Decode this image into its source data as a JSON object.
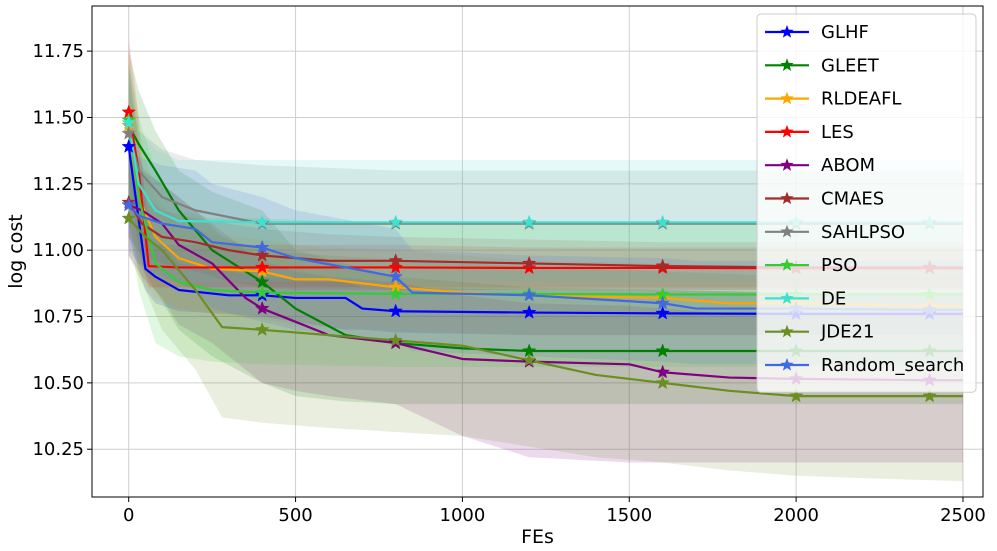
{
  "chart_data": {
    "type": "line",
    "xlabel": "FEs",
    "ylabel": "log cost",
    "xlim": [
      -110,
      2560
    ],
    "ylim": [
      10.07,
      11.92
    ],
    "xticks": [
      0,
      500,
      1000,
      1500,
      2000,
      2500
    ],
    "xtick_labels": [
      "0",
      "500",
      "1000",
      "1500",
      "2000",
      "2500"
    ],
    "yticks": [
      10.25,
      10.5,
      10.75,
      11.0,
      11.25,
      11.5,
      11.75
    ],
    "ytick_labels": [
      "10.25",
      "10.50",
      "10.75",
      "11.00",
      "11.25",
      "11.50",
      "11.75"
    ],
    "grid": true,
    "legend_position": "top-right",
    "marker_every": 400,
    "series": [
      {
        "name": "GLHF",
        "color": "#0000ff",
        "x": [
          0,
          50,
          80,
          150,
          300,
          400,
          500,
          650,
          700,
          800,
          1200,
          1600,
          2000,
          2400,
          2500
        ],
        "y": [
          11.39,
          10.93,
          10.9,
          10.85,
          10.83,
          10.83,
          10.82,
          10.82,
          10.78,
          10.77,
          10.765,
          10.762,
          10.76,
          10.76,
          10.76
        ],
        "band_low": [
          11.05,
          10.85,
          10.8,
          10.77,
          10.76,
          10.75,
          10.73,
          10.7,
          10.7,
          10.69,
          10.68,
          10.68,
          10.68,
          10.68,
          10.68
        ],
        "band_high": [
          11.7,
          11.2,
          11.05,
          10.95,
          10.92,
          10.9,
          10.89,
          10.88,
          10.86,
          10.86,
          10.85,
          10.85,
          10.84,
          10.84,
          10.84
        ]
      },
      {
        "name": "GLEET",
        "color": "#008000",
        "x": [
          0,
          30,
          80,
          150,
          250,
          400,
          500,
          650,
          800,
          1000,
          1200,
          1600,
          2000,
          2400,
          2500
        ],
        "y": [
          11.47,
          11.4,
          11.3,
          11.15,
          11.0,
          10.88,
          10.78,
          10.68,
          10.65,
          10.63,
          10.62,
          10.62,
          10.62,
          10.62,
          10.62
        ],
        "band_low": [
          11.1,
          10.95,
          10.85,
          10.7,
          10.6,
          10.5,
          10.45,
          10.43,
          10.42,
          10.42,
          10.42,
          10.42,
          10.42,
          10.42,
          10.42
        ],
        "band_high": [
          11.75,
          11.6,
          11.45,
          11.3,
          11.22,
          11.15,
          11.0,
          10.95,
          10.9,
          10.88,
          10.86,
          10.85,
          10.84,
          10.84,
          10.84
        ]
      },
      {
        "name": "RLDEAFL",
        "color": "#ffa500",
        "x": [
          0,
          30,
          80,
          150,
          250,
          400,
          500,
          600,
          800,
          1000,
          1200,
          1600,
          1800,
          2000,
          2400,
          2500
        ],
        "y": [
          11.47,
          11.2,
          11.05,
          10.97,
          10.93,
          10.92,
          10.89,
          10.89,
          10.86,
          10.84,
          10.83,
          10.82,
          10.8,
          10.8,
          10.79,
          10.79
        ],
        "band_low": [
          11.15,
          10.9,
          10.82,
          10.78,
          10.76,
          10.74,
          10.72,
          10.71,
          10.7,
          10.69,
          10.68,
          10.68,
          10.68,
          10.68,
          10.68,
          10.68
        ],
        "band_high": [
          11.75,
          11.45,
          11.2,
          11.1,
          11.06,
          11.04,
          11.02,
          11.01,
          11.0,
          10.98,
          10.96,
          10.95,
          10.94,
          10.94,
          10.94,
          10.94
        ]
      },
      {
        "name": "LES",
        "color": "#ff0000",
        "x": [
          0,
          30,
          60,
          150,
          400,
          800,
          1200,
          1600,
          2000,
          2400,
          2500
        ],
        "y": [
          11.52,
          11.3,
          10.94,
          10.935,
          10.935,
          10.935,
          10.933,
          10.933,
          10.932,
          10.932,
          10.932
        ],
        "band_low": [
          11.3,
          11.0,
          10.86,
          10.86,
          10.86,
          10.86,
          10.86,
          10.86,
          10.86,
          10.86,
          10.86
        ],
        "band_high": [
          11.8,
          11.5,
          11.02,
          11.02,
          11.02,
          11.02,
          11.01,
          11.01,
          11.01,
          11.01,
          11.01
        ]
      },
      {
        "name": "ABOM",
        "color": "#800080",
        "x": [
          0,
          40,
          100,
          150,
          250,
          350,
          400,
          500,
          600,
          800,
          1000,
          1200,
          1500,
          1600,
          1800,
          2000,
          2400,
          2500
        ],
        "y": [
          11.17,
          11.15,
          11.1,
          11.02,
          10.95,
          10.82,
          10.78,
          10.73,
          10.68,
          10.65,
          10.59,
          10.58,
          10.57,
          10.54,
          10.52,
          10.515,
          10.51,
          10.51
        ],
        "band_low": [
          10.98,
          10.9,
          10.82,
          10.72,
          10.65,
          10.55,
          10.5,
          10.47,
          10.45,
          10.42,
          10.3,
          10.22,
          10.2,
          10.2,
          10.2,
          10.2,
          10.2,
          10.2
        ],
        "band_high": [
          11.35,
          11.3,
          11.25,
          11.2,
          11.1,
          11.0,
          10.96,
          10.92,
          10.9,
          10.88,
          10.83,
          10.8,
          10.79,
          10.78,
          10.76,
          10.76,
          10.76,
          10.76
        ]
      },
      {
        "name": "CMAES",
        "color": "#a52a2a",
        "x": [
          0,
          40,
          100,
          200,
          300,
          400,
          500,
          600,
          800,
          1200,
          1600,
          2000,
          2400,
          2500
        ],
        "y": [
          11.18,
          11.1,
          11.05,
          11.03,
          11.0,
          10.98,
          10.97,
          10.96,
          10.96,
          10.95,
          10.94,
          10.935,
          10.935,
          10.935
        ],
        "band_low": [
          11.05,
          10.98,
          10.95,
          10.92,
          10.88,
          10.86,
          10.85,
          10.85,
          10.85,
          10.85,
          10.85,
          10.85,
          10.85,
          10.85
        ],
        "band_high": [
          11.3,
          11.22,
          11.15,
          11.12,
          11.1,
          11.08,
          11.07,
          11.06,
          11.05,
          11.04,
          11.03,
          11.03,
          11.03,
          11.03
        ]
      },
      {
        "name": "SAHLPSO",
        "color": "#808080",
        "x": [
          0,
          30,
          100,
          200,
          400,
          800,
          1200,
          1600,
          2000,
          2400,
          2500
        ],
        "y": [
          11.44,
          11.3,
          11.2,
          11.15,
          11.1,
          11.1,
          11.1,
          11.1,
          11.1,
          11.1,
          11.1
        ],
        "band_low": [
          11.2,
          11.0,
          10.95,
          10.92,
          10.88,
          10.85,
          10.85,
          10.85,
          10.85,
          10.85,
          10.85
        ],
        "band_high": [
          11.62,
          11.45,
          11.38,
          11.34,
          11.32,
          11.3,
          11.3,
          11.3,
          11.3,
          11.3,
          11.3
        ]
      },
      {
        "name": "PSO",
        "color": "#32cd32",
        "x": [
          0,
          30,
          80,
          150,
          250,
          400,
          800,
          1200,
          1600,
          2000,
          2400,
          2500
        ],
        "y": [
          11.49,
          11.2,
          10.95,
          10.88,
          10.85,
          10.84,
          10.835,
          10.835,
          10.833,
          10.833,
          10.833,
          10.833
        ],
        "band_low": [
          11.1,
          10.85,
          10.65,
          10.6,
          10.58,
          10.57,
          10.56,
          10.56,
          10.56,
          10.56,
          10.56,
          10.56
        ],
        "band_high": [
          11.7,
          11.5,
          11.3,
          11.15,
          11.12,
          11.12,
          11.1,
          11.1,
          11.1,
          11.1,
          11.1,
          11.1
        ]
      },
      {
        "name": "DE",
        "color": "#40e0d0",
        "x": [
          0,
          30,
          80,
          150,
          400,
          800,
          1200,
          1600,
          2000,
          2400,
          2500
        ],
        "y": [
          11.48,
          11.25,
          11.15,
          11.11,
          11.105,
          11.105,
          11.105,
          11.105,
          11.105,
          11.105,
          11.105
        ],
        "band_low": [
          11.2,
          11.0,
          10.9,
          10.88,
          10.88,
          10.88,
          10.88,
          10.88,
          10.88,
          10.88,
          10.88
        ],
        "band_high": [
          11.7,
          11.45,
          11.38,
          11.34,
          11.34,
          11.34,
          11.34,
          11.34,
          11.34,
          11.34,
          11.34
        ]
      },
      {
        "name": "JDE21",
        "color": "#6b8e23",
        "x": [
          0,
          50,
          100,
          200,
          280,
          400,
          600,
          1000,
          1400,
          1600,
          1800,
          2000,
          2220,
          2500
        ],
        "y": [
          11.12,
          11.05,
          11.0,
          10.85,
          10.71,
          10.7,
          10.68,
          10.64,
          10.53,
          10.5,
          10.47,
          10.45,
          10.45,
          10.45
        ],
        "band_low": [
          10.98,
          10.85,
          10.7,
          10.55,
          10.37,
          10.35,
          10.33,
          10.3,
          10.22,
          10.2,
          10.17,
          10.15,
          10.14,
          10.13
        ],
        "band_high": [
          11.4,
          11.3,
          11.25,
          11.15,
          11.05,
          11.0,
          10.98,
          10.95,
          10.93,
          10.92,
          10.91,
          10.9,
          10.9,
          10.9
        ]
      },
      {
        "name": "Random_search",
        "color": "#4169e1",
        "x": [
          0,
          30,
          100,
          200,
          250,
          400,
          500,
          800,
          850,
          1200,
          1600,
          1700,
          2000,
          2400,
          2500
        ],
        "y": [
          11.17,
          11.13,
          11.1,
          11.08,
          11.03,
          11.01,
          10.97,
          10.9,
          10.84,
          10.83,
          10.8,
          10.78,
          10.78,
          10.775,
          10.775
        ],
        "band_low": [
          11.0,
          10.95,
          10.9,
          10.85,
          10.78,
          10.73,
          10.7,
          10.66,
          10.62,
          10.6,
          10.58,
          10.57,
          10.57,
          10.57,
          10.57
        ],
        "band_high": [
          11.4,
          11.35,
          11.32,
          11.3,
          11.25,
          11.2,
          11.15,
          11.08,
          11.0,
          10.98,
          10.97,
          10.96,
          10.96,
          10.96,
          10.96
        ]
      }
    ]
  }
}
